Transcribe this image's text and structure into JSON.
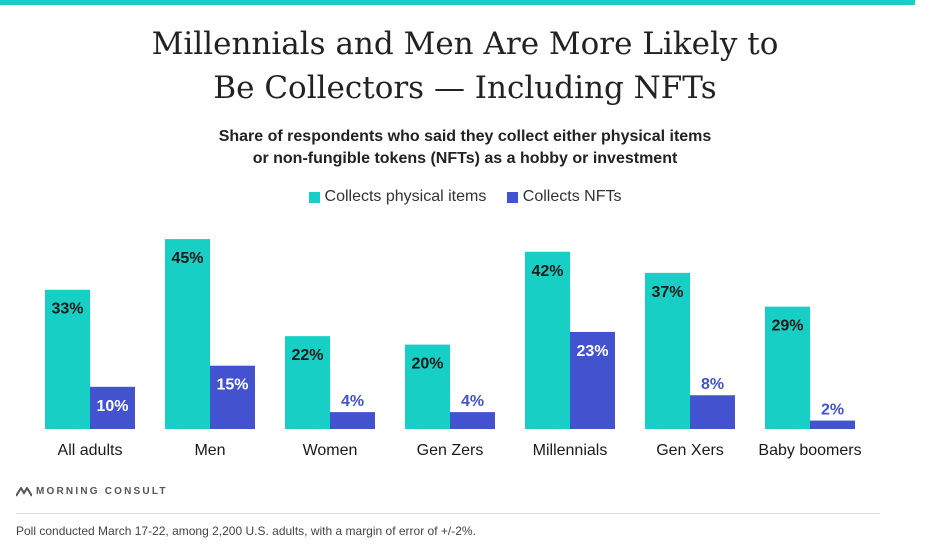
{
  "colors": {
    "physical": "#17cfc4",
    "nft": "#4353cf",
    "accent": "#17cfc4"
  },
  "header": {
    "title_lines": [
      "Millennials and Men Are More Likely to",
      "Be Collectors — Including NFTs"
    ],
    "subtitle_lines": [
      "Share of respondents who said they collect either physical items",
      "or non-fungible tokens (NFTs) as a hobby or investment"
    ]
  },
  "legend": [
    {
      "label": "Collects physical items",
      "color": "#17cfc4"
    },
    {
      "label": "Collects NFTs",
      "color": "#4353cf"
    }
  ],
  "chart_data": {
    "type": "bar",
    "title": "Millennials and Men Are More Likely to Be Collectors — Including NFTs",
    "subtitle": "Share of respondents who said they collect either physical items or non-fungible tokens (NFTs) as a hobby or investment",
    "categories": [
      "All adults",
      "Men",
      "Women",
      "Gen Zers",
      "Millennials",
      "Gen Xers",
      "Baby boomers"
    ],
    "series": [
      {
        "name": "Collects physical items",
        "values": [
          33,
          45,
          22,
          20,
          42,
          37,
          29
        ]
      },
      {
        "name": "Collects NFTs",
        "values": [
          10,
          15,
          4,
          4,
          23,
          8,
          2
        ]
      }
    ],
    "value_suffix": "%",
    "ylim": [
      0,
      45
    ],
    "grid": false,
    "legend_position": "top-center"
  },
  "footer": {
    "brand": "MORNING CONSULT",
    "note": "Poll conducted March 17-22, among 2,200 U.S. adults, with a margin of error of +/-2%."
  }
}
